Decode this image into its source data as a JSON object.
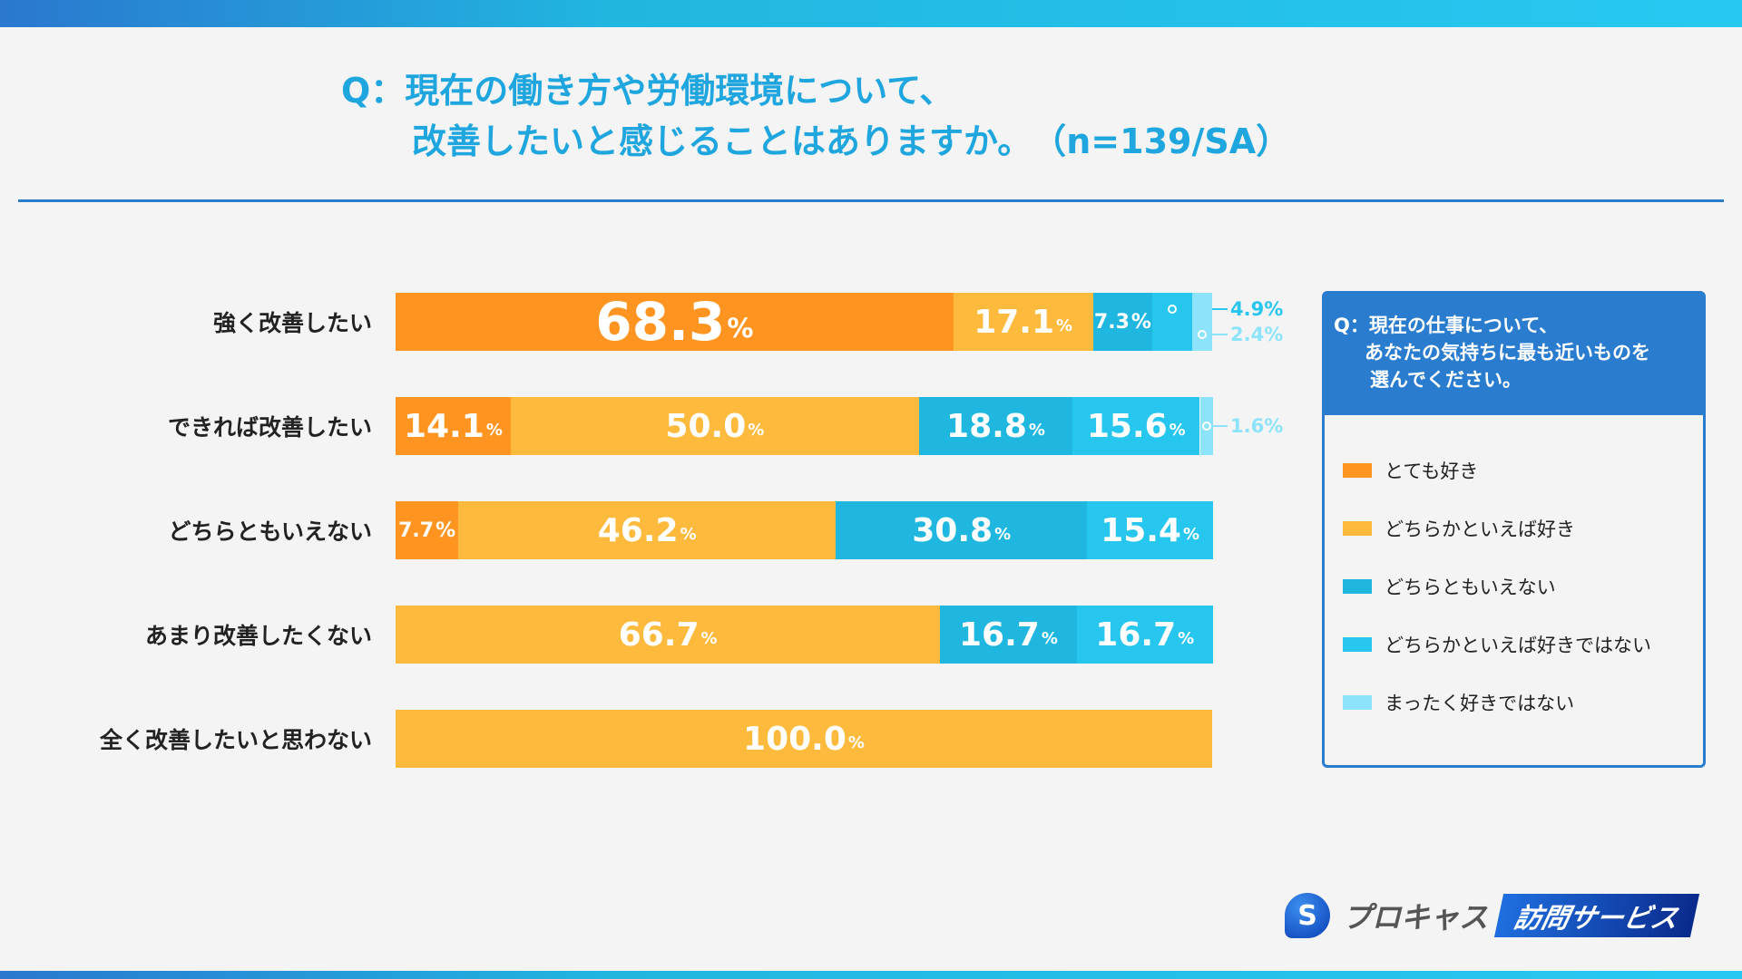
{
  "title": {
    "line1": "Q：現在の働き方や労働環境について、",
    "line2": "改善したいと感じることはありますか。　（n=139/SA）"
  },
  "legend": {
    "question_line1": "Q：現在の仕事について、",
    "question_line2": "あなたの気持ちに最も近いものを",
    "question_line3": "選んでください。"
  },
  "logo": {
    "name": "プロキャス",
    "service": "訪問サービス"
  },
  "chart_data": {
    "type": "bar",
    "orientation": "horizontal",
    "stacked": true,
    "percent_stacked": true,
    "xlim": [
      0,
      100
    ],
    "unit": "%",
    "categories": [
      "強く改善したい",
      "できれば改善したい",
      "どちらともいえない",
      "あまり改善したくない",
      "全く改善したいと思わない"
    ],
    "series": [
      {
        "name": "とても好き",
        "color": "#FF9520",
        "values": [
          68.3,
          14.1,
          7.7,
          0,
          0
        ]
      },
      {
        "name": "どちらかといえば好き",
        "color": "#FDBA3C",
        "values": [
          17.1,
          50.0,
          46.2,
          66.7,
          100.0
        ]
      },
      {
        "name": "どちらともいえない",
        "color": "#1FB7E0",
        "values": [
          7.3,
          18.8,
          30.8,
          16.7,
          0
        ]
      },
      {
        "name": "どちらかといえば好きではない",
        "color": "#27C6EE",
        "values": [
          4.9,
          15.6,
          15.4,
          16.7,
          0
        ]
      },
      {
        "name": "まったく好きではない",
        "color": "#8DE4FA",
        "values": [
          2.4,
          1.6,
          0,
          0,
          0
        ]
      }
    ],
    "legend_position": "right",
    "grid": false
  }
}
